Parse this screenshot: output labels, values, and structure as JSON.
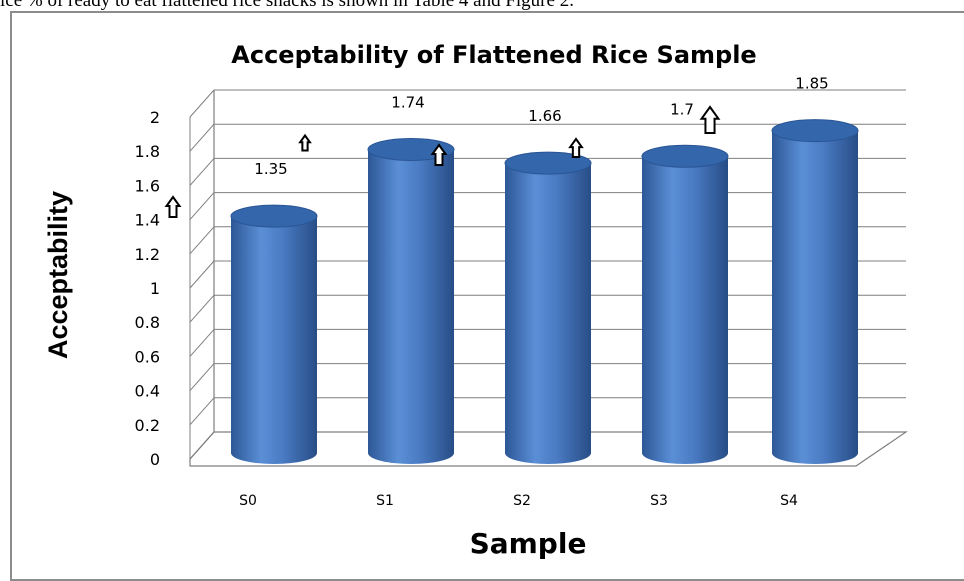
{
  "caption": "ice % of ready to eat flattened rice snacks is shown in Table 4 and Figure 2.",
  "chart_data": {
    "type": "bar",
    "style": "3d-cylinder",
    "title": "Acceptability of Flattened Rice Sample",
    "xlabel": "Sample",
    "ylabel": "Acceptability",
    "categories": [
      "S0",
      "S1",
      "S2",
      "S3",
      "S4"
    ],
    "series": [
      {
        "values": [
          1.35,
          1.74,
          1.66,
          1.7,
          1.85
        ]
      }
    ],
    "data_labels": [
      "1.35",
      "1.74",
      "1.66",
      "1.7",
      "1.85"
    ],
    "ylim": [
      0,
      2
    ],
    "yticks": [
      "0",
      "0.2",
      "0.4",
      "0.6",
      "0.8",
      "1",
      "1.2",
      "1.4",
      "1.6",
      "1.8",
      "2"
    ],
    "grid": true,
    "legend": "none",
    "colors": {
      "bar": "#4a7ac0",
      "bar_dark": "#2e5a9c",
      "bar_top": "#3366aa",
      "grid": "#7f7f7f"
    }
  }
}
